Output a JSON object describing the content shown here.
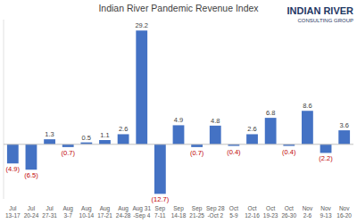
{
  "chart_data": {
    "type": "bar",
    "title": "Indian River Pandemic Revenue Index",
    "annotations": [
      "INDIAN RIVER",
      "CONSULTING GROUP"
    ],
    "categories": [
      "Jul\n13-17",
      "Jul\n20-24",
      "Jul\n27-31",
      "Aug\n3-7",
      "Aug\n10-14",
      "Aug\n17-21",
      "Aug\n24-28",
      "Aug 31\n-Sep 4",
      "Sep\n7-11",
      "Sep\n14-18",
      "Sep\n21-25",
      "Sep 28\n-Oct 2",
      "Oct\n5-9",
      "Oct\n12-16",
      "Oct\n19-23",
      "Oct\n26-30",
      "Nov\n2-6",
      "Nov\n9-13",
      "Nov\n16-20"
    ],
    "values": [
      -4.9,
      -6.5,
      1.3,
      -0.7,
      0.5,
      1.1,
      2.6,
      29.2,
      -12.7,
      4.9,
      -0.7,
      4.8,
      -0.4,
      2.6,
      6.8,
      -0.4,
      8.6,
      -2.2,
      3.6
    ],
    "value_labels": [
      "(4.9)",
      "(6.5)",
      "1.3",
      "(0.7)",
      "0.5",
      "1.1",
      "2.6",
      "29.2",
      "(12.7)",
      "4.9",
      "(0.7)",
      "4.8",
      "(0.4)",
      "2.6",
      "6.8",
      "(0.4)",
      "8.6",
      "(2.2)",
      "3.6"
    ],
    "color": "#4472c4",
    "ylim": [
      -14,
      32
    ],
    "data_labels": true,
    "grid": false,
    "tick_labels": "x"
  }
}
